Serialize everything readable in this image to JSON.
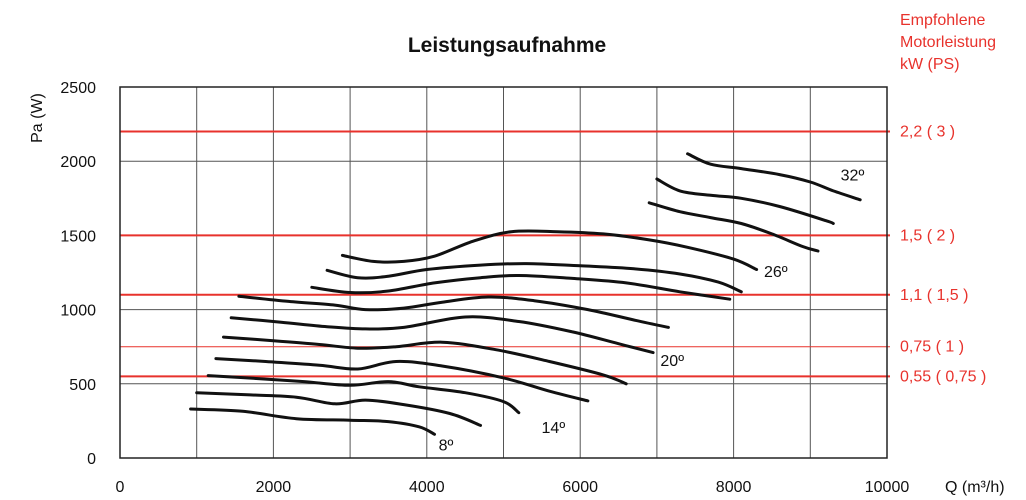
{
  "chart_data": {
    "type": "line",
    "title": "Leistungsaufnahme",
    "ylabel": "Pa (W)",
    "xlabel": "Q (m³/h)",
    "right_label_lines": [
      "Empfohlene",
      "Motorleistung",
      "kW (PS)"
    ],
    "xlim": [
      0,
      10000
    ],
    "ylim": [
      0,
      2500
    ],
    "x_ticks": [
      0,
      2000,
      4000,
      6000,
      8000,
      10000
    ],
    "y_ticks": [
      0,
      500,
      1000,
      1500,
      2000,
      2500
    ],
    "x_gridlines": [
      1000,
      2000,
      3000,
      4000,
      5000,
      6000,
      7000,
      8000,
      9000
    ],
    "y_gridlines": [
      500,
      1000,
      1500,
      2000
    ],
    "motor_lines": [
      {
        "y": 2200,
        "label": "2,2 ( 3 )",
        "weight": "bold"
      },
      {
        "y": 1500,
        "label": "1,5 ( 2 )",
        "weight": "bold"
      },
      {
        "y": 1100,
        "label": "1,1 ( 1,5 )",
        "weight": "bold"
      },
      {
        "y": 750,
        "label": "0,75 ( 1 )",
        "weight": "thin"
      },
      {
        "y": 550,
        "label": "0,55 ( 0,75 )",
        "weight": "bold"
      }
    ],
    "series": [
      {
        "points": [
          [
            920,
            330
          ],
          [
            1600,
            315
          ],
          [
            2300,
            265
          ],
          [
            3000,
            255
          ],
          [
            3500,
            245
          ],
          [
            3900,
            210
          ],
          [
            4100,
            160
          ]
        ]
      },
      {
        "points": [
          [
            1000,
            440
          ],
          [
            1700,
            425
          ],
          [
            2300,
            410
          ],
          [
            2800,
            365
          ],
          [
            3200,
            390
          ],
          [
            3700,
            360
          ],
          [
            4300,
            300
          ],
          [
            4700,
            220
          ]
        ]
      },
      {
        "points": [
          [
            1150,
            555
          ],
          [
            1800,
            535
          ],
          [
            2400,
            515
          ],
          [
            3000,
            490
          ],
          [
            3500,
            515
          ],
          [
            3900,
            480
          ],
          [
            4500,
            440
          ],
          [
            5000,
            380
          ],
          [
            5200,
            305
          ]
        ]
      },
      {
        "points": [
          [
            1250,
            670
          ],
          [
            1900,
            650
          ],
          [
            2600,
            625
          ],
          [
            3100,
            600
          ],
          [
            3600,
            650
          ],
          [
            4200,
            620
          ],
          [
            5000,
            540
          ],
          [
            5600,
            450
          ],
          [
            6100,
            385
          ]
        ]
      },
      {
        "points": [
          [
            1350,
            815
          ],
          [
            2000,
            790
          ],
          [
            2600,
            765
          ],
          [
            3100,
            740
          ],
          [
            3600,
            750
          ],
          [
            4200,
            780
          ],
          [
            4900,
            730
          ],
          [
            5600,
            650
          ],
          [
            6300,
            560
          ],
          [
            6600,
            500
          ]
        ]
      },
      {
        "points": [
          [
            1450,
            945
          ],
          [
            2100,
            915
          ],
          [
            2700,
            885
          ],
          [
            3200,
            870
          ],
          [
            3700,
            880
          ],
          [
            4500,
            950
          ],
          [
            5200,
            920
          ],
          [
            5900,
            850
          ],
          [
            6500,
            770
          ],
          [
            6950,
            710
          ]
        ]
      },
      {
        "points": [
          [
            1550,
            1090
          ],
          [
            2200,
            1055
          ],
          [
            2800,
            1030
          ],
          [
            3200,
            1000
          ],
          [
            3700,
            1010
          ],
          [
            4200,
            1050
          ],
          [
            4800,
            1085
          ],
          [
            5400,
            1060
          ],
          [
            6100,
            1000
          ],
          [
            6700,
            930
          ],
          [
            7150,
            880
          ]
        ]
      },
      {
        "points": [
          [
            2500,
            1150
          ],
          [
            3000,
            1115
          ],
          [
            3500,
            1125
          ],
          [
            4100,
            1180
          ],
          [
            4700,
            1215
          ],
          [
            5200,
            1230
          ],
          [
            5900,
            1210
          ],
          [
            6600,
            1180
          ],
          [
            7300,
            1120
          ],
          [
            7950,
            1070
          ]
        ]
      },
      {
        "points": [
          [
            2700,
            1265
          ],
          [
            3100,
            1215
          ],
          [
            3500,
            1225
          ],
          [
            4000,
            1270
          ],
          [
            4700,
            1300
          ],
          [
            5300,
            1310
          ],
          [
            6000,
            1295
          ],
          [
            6700,
            1275
          ],
          [
            7300,
            1240
          ],
          [
            7800,
            1185
          ],
          [
            8100,
            1120
          ]
        ]
      },
      {
        "points": [
          [
            2900,
            1365
          ],
          [
            3300,
            1325
          ],
          [
            3700,
            1325
          ],
          [
            4100,
            1360
          ],
          [
            4600,
            1460
          ],
          [
            5100,
            1525
          ],
          [
            5700,
            1525
          ],
          [
            6300,
            1510
          ],
          [
            6900,
            1470
          ],
          [
            7400,
            1420
          ],
          [
            8000,
            1340
          ],
          [
            8300,
            1270
          ]
        ]
      },
      {
        "points": [
          [
            6900,
            1720
          ],
          [
            7300,
            1660
          ],
          [
            7700,
            1620
          ],
          [
            8100,
            1580
          ],
          [
            8500,
            1510
          ],
          [
            8900,
            1425
          ],
          [
            9100,
            1395
          ]
        ]
      },
      {
        "points": [
          [
            7000,
            1880
          ],
          [
            7300,
            1800
          ],
          [
            7700,
            1770
          ],
          [
            8100,
            1750
          ],
          [
            8600,
            1695
          ],
          [
            9200,
            1600
          ],
          [
            9300,
            1580
          ]
        ]
      },
      {
        "points": [
          [
            7400,
            2050
          ],
          [
            7700,
            1980
          ],
          [
            8100,
            1950
          ],
          [
            8600,
            1910
          ],
          [
            9000,
            1860
          ],
          [
            9300,
            1800
          ],
          [
            9650,
            1740
          ]
        ]
      }
    ],
    "curve_labels": [
      {
        "text": "8º",
        "x": 4250,
        "y": 50
      },
      {
        "text": "14º",
        "x": 5650,
        "y": 170
      },
      {
        "text": "20º",
        "x": 7200,
        "y": 620
      },
      {
        "text": "26º",
        "x": 8550,
        "y": 1220
      },
      {
        "text": "32º",
        "x": 9550,
        "y": 1870
      }
    ]
  }
}
